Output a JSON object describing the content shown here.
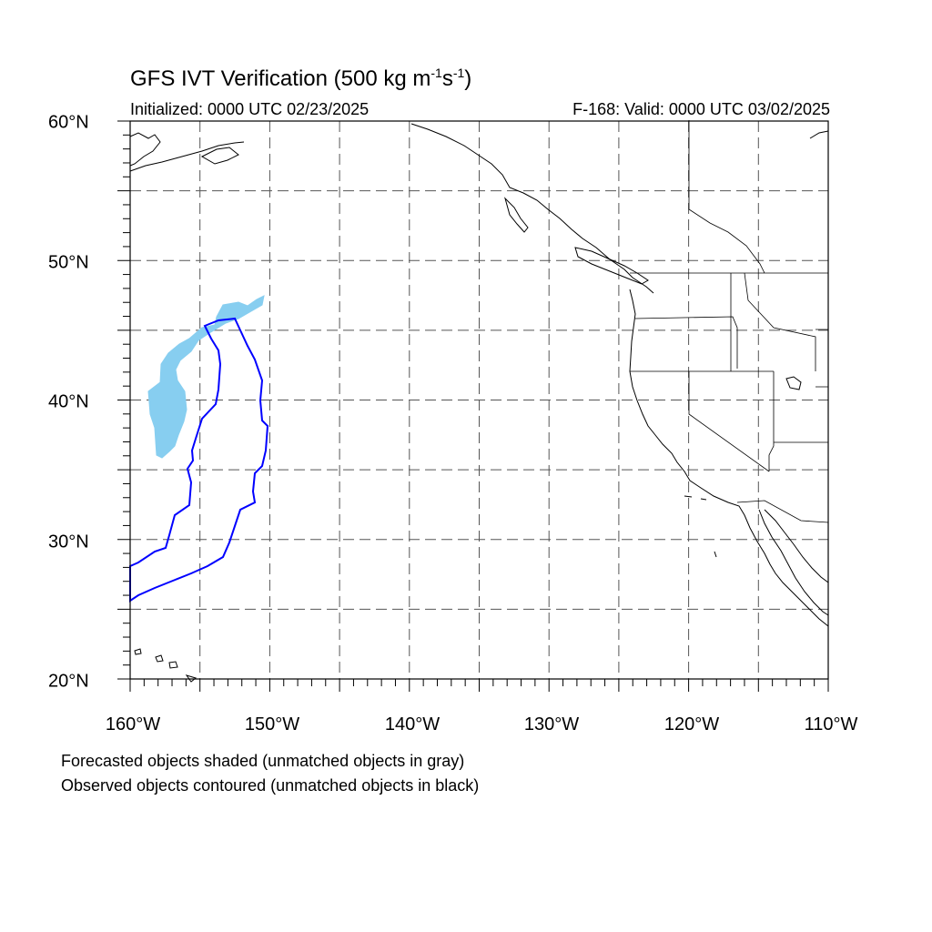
{
  "title_main": "GFS IVT Verification (500 kg m",
  "title_exp1": "-1",
  "title_mid": "s",
  "title_exp2": "-1",
  "title_close": ")",
  "init_text": "Initialized: 0000 UTC 02/23/2025",
  "valid_text": "F-168: Valid: 0000 UTC 03/02/2025",
  "footnote_forecast": "Forecasted objects shaded (unmatched objects in gray)",
  "footnote_observed": "Observed objects contoured (unmatched objects in black)",
  "map": {
    "lat_range": [
      20,
      60
    ],
    "lon_range": [
      -160,
      -110
    ],
    "lat_labels": [
      "20°N",
      "30°N",
      "40°N",
      "50°N",
      "60°N"
    ],
    "lon_labels": [
      "160°W",
      "150°W",
      "140°W",
      "130°W",
      "120°W",
      "110°W"
    ],
    "grid_lines": "dashed every 5°",
    "colors": {
      "forecast_fill": "#87cef0",
      "observed_contour": "#0000ff",
      "coastline": "#000000",
      "grid": "#555555"
    }
  }
}
